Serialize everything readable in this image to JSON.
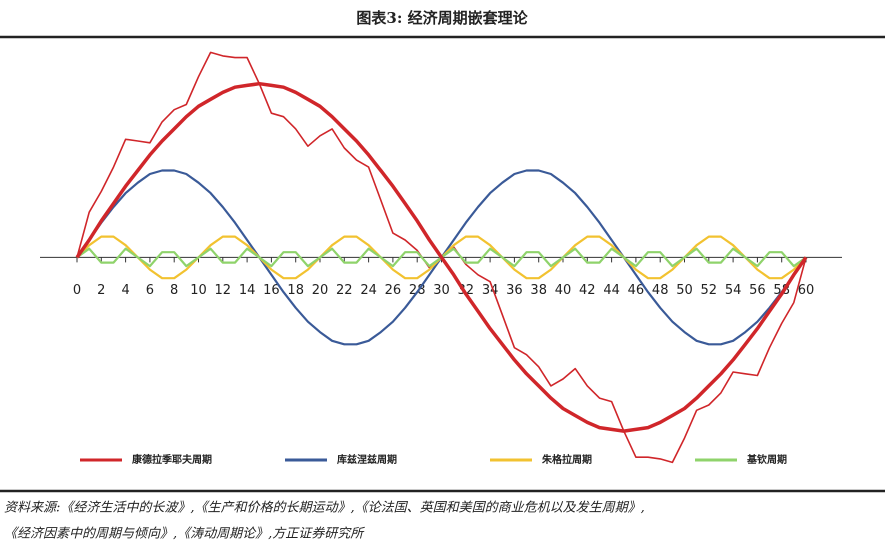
{
  "chart_data": {
    "type": "line",
    "title": "图表3:  经济周期嵌套理论",
    "x": [
      0,
      1,
      2,
      3,
      4,
      5,
      6,
      7,
      8,
      9,
      10,
      11,
      12,
      13,
      14,
      15,
      16,
      17,
      18,
      19,
      20,
      21,
      22,
      23,
      24,
      25,
      26,
      27,
      28,
      29,
      30,
      31,
      32,
      33,
      34,
      35,
      36,
      37,
      38,
      39,
      40,
      41,
      42,
      43,
      44,
      45,
      46,
      47,
      48,
      49,
      50,
      51,
      52,
      53,
      54,
      55,
      56,
      57,
      58,
      59,
      60
    ],
    "series": [
      {
        "values": [
          0,
          0.26,
          0.38,
          0.52,
          0.68,
          0.67,
          0.66,
          0.78,
          0.85,
          0.88,
          1.04,
          1.18,
          1.16,
          1.15,
          1.15,
          1,
          0.83,
          0.81,
          0.74,
          0.64,
          0.7,
          0.74,
          0.63,
          0.56,
          0.52,
          0.33,
          0.14,
          0.1,
          0.04,
          -0.06,
          0,
          0.06,
          -0.04,
          -0.1,
          -0.14,
          -0.33,
          -0.52,
          -0.56,
          -0.63,
          -0.74,
          -0.7,
          -0.64,
          -0.74,
          -0.81,
          -0.83,
          -1,
          -1.15,
          -1.15,
          -1.16,
          -1.18,
          -1.04,
          -0.88,
          -0.85,
          -0.78,
          -0.66,
          -0.67,
          -0.68,
          -0.52,
          -0.38,
          -0.26,
          0
        ],
        "color": "#d0262a",
        "width": 1.6
      },
      {
        "name": "康德拉季耶夫周期",
        "color": "#d0262a",
        "width": 3.5,
        "values": [
          0,
          0.1,
          0.21,
          0.31,
          0.41,
          0.5,
          0.59,
          0.67,
          0.74,
          0.81,
          0.87,
          0.91,
          0.95,
          0.98,
          0.99,
          1,
          0.99,
          0.98,
          0.95,
          0.91,
          0.87,
          0.81,
          0.74,
          0.67,
          0.59,
          0.5,
          0.41,
          0.31,
          0.21,
          0.1,
          0,
          -0.1,
          -0.21,
          -0.31,
          -0.41,
          -0.5,
          -0.59,
          -0.67,
          -0.74,
          -0.81,
          -0.87,
          -0.91,
          -0.95,
          -0.98,
          -0.99,
          -1,
          -0.99,
          -0.98,
          -0.95,
          -0.91,
          -0.87,
          -0.81,
          -0.74,
          -0.67,
          -0.59,
          -0.5,
          -0.41,
          -0.31,
          -0.21,
          -0.1,
          0
        ]
      },
      {
        "name": "库兹涅兹周期",
        "color": "#3a5a98",
        "width": 2.2,
        "values": [
          0,
          0.1,
          0.2,
          0.29,
          0.37,
          0.43,
          0.48,
          0.5,
          0.5,
          0.48,
          0.43,
          0.37,
          0.29,
          0.2,
          0.1,
          0,
          -0.1,
          -0.2,
          -0.29,
          -0.37,
          -0.43,
          -0.48,
          -0.5,
          -0.5,
          -0.48,
          -0.43,
          -0.37,
          -0.29,
          -0.2,
          -0.1,
          0,
          0.1,
          0.2,
          0.29,
          0.37,
          0.43,
          0.48,
          0.5,
          0.5,
          0.48,
          0.43,
          0.37,
          0.29,
          0.2,
          0.1,
          0,
          -0.1,
          -0.2,
          -0.29,
          -0.37,
          -0.43,
          -0.48,
          -0.5,
          -0.5,
          -0.48,
          -0.43,
          -0.37,
          -0.29,
          -0.2,
          -0.1,
          0
        ]
      },
      {
        "name": "朱格拉周期",
        "color": "#f2c230",
        "width": 2.2,
        "values": [
          0,
          0.07,
          0.12,
          0.12,
          0.07,
          0,
          -0.07,
          -0.12,
          -0.12,
          -0.07,
          0,
          0.07,
          0.12,
          0.12,
          0.07,
          0,
          -0.07,
          -0.12,
          -0.12,
          -0.07,
          0,
          0.07,
          0.12,
          0.12,
          0.07,
          0,
          -0.07,
          -0.12,
          -0.12,
          -0.07,
          0,
          0.07,
          0.12,
          0.12,
          0.07,
          0,
          -0.07,
          -0.12,
          -0.12,
          -0.07,
          0,
          0.07,
          0.12,
          0.12,
          0.07,
          0,
          -0.07,
          -0.12,
          -0.12,
          -0.07,
          0,
          0.07,
          0.12,
          0.12,
          0.07,
          0,
          -0.07,
          -0.12,
          -0.12,
          -0.07,
          0
        ]
      },
      {
        "name": "基钦周期",
        "color": "#8fd36b",
        "width": 2.2,
        "values": [
          0,
          0.05,
          -0.03,
          -0.03,
          0.05,
          0,
          -0.05,
          0.03,
          0.03,
          -0.05,
          0,
          0.05,
          -0.03,
          -0.03,
          0.05,
          0,
          -0.05,
          0.03,
          0.03,
          -0.05,
          0,
          0.05,
          -0.03,
          -0.03,
          0.05,
          0,
          -0.05,
          0.03,
          0.03,
          -0.05,
          0,
          0.05,
          -0.03,
          -0.03,
          0.05,
          0,
          -0.05,
          0.03,
          0.03,
          -0.05,
          0,
          0.05,
          -0.03,
          -0.03,
          0.05,
          0,
          -0.05,
          0.03,
          0.03,
          -0.05,
          0,
          0.05,
          -0.03,
          -0.03,
          0.05,
          0,
          -0.05,
          0.03,
          0.03,
          -0.05,
          0
        ]
      }
    ],
    "xlim": [
      0,
      60
    ],
    "xticks": [
      0,
      2,
      4,
      6,
      8,
      10,
      12,
      14,
      16,
      18,
      20,
      22,
      24,
      26,
      28,
      30,
      32,
      34,
      36,
      38,
      40,
      42,
      44,
      46,
      48,
      50,
      52,
      54,
      56,
      58,
      60
    ],
    "ylim": [
      -1.08,
      1.24
    ],
    "legend": "bottom",
    "source": [
      "资料来源:《经济生活中的长波》,《生产和价格的长期运动》,《论法国、英国和美国的商业危机以及发生周期》,",
      "《经济因素中的周期与倾向》,《涛动周期论》,方正证券研究所"
    ]
  }
}
